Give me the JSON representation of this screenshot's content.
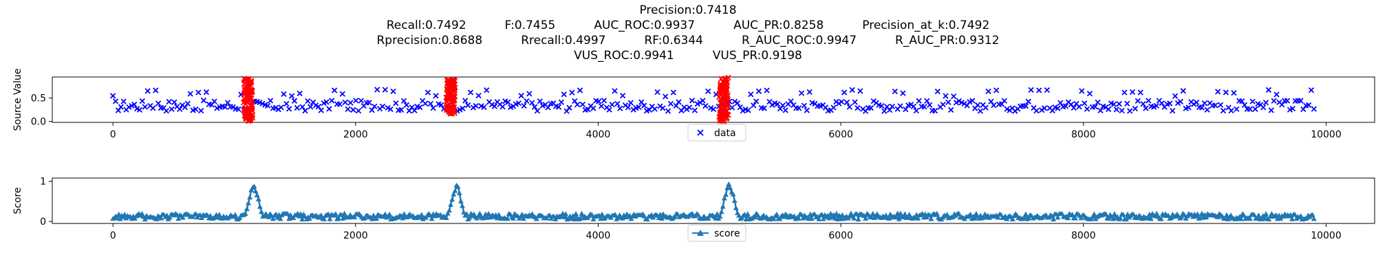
{
  "title_lines": [
    [
      "Precision:0.7418"
    ],
    [
      "Recall:0.7492",
      "F:0.7455",
      "AUC_ROC:0.9937",
      "AUC_PR:0.8258",
      "Precision_at_k:0.7492"
    ],
    [
      "Rprecision:0.8688",
      "Rrecall:0.4997",
      "RF:0.6344",
      "R_AUC_ROC:0.9947",
      "R_AUC_PR:0.9312"
    ],
    [
      "VUS_ROC:0.9941",
      "VUS_PR:0.9198"
    ]
  ],
  "colors": {
    "data": "#0000ff",
    "anomaly": "#ff0000",
    "score": "#1f77b4"
  },
  "chart_data": [
    {
      "type": "scatter",
      "ylabel": "Source Value",
      "xlim": [
        -500,
        10400
      ],
      "ylim": [
        -0.02,
        0.95
      ],
      "xticks": [
        0,
        2000,
        4000,
        6000,
        8000,
        10000
      ],
      "xtick_labels": [
        "0",
        "2000",
        "4000",
        "6000",
        "8000",
        "10000"
      ],
      "yticks": [
        0.0,
        0.5
      ],
      "ytick_labels": [
        "0.0",
        "0.5"
      ],
      "legend": {
        "placement": "lower-center",
        "entries": [
          {
            "label": "data",
            "marker": "x"
          }
        ]
      },
      "series": [
        {
          "name": "data",
          "marker": "x",
          "x_range": [
            0,
            9900
          ],
          "period": 70,
          "baseline": [
            0.22,
            0.45
          ],
          "peak": 0.68
        }
      ],
      "anomalies": [
        {
          "x_start": 1080,
          "x_end": 1150,
          "y_range": [
            0.0,
            0.95
          ]
        },
        {
          "x_start": 2750,
          "x_end": 2820,
          "y_range": [
            0.15,
            0.9
          ]
        },
        {
          "x_start": 5000,
          "x_end": 5070,
          "y_range": [
            0.0,
            0.95
          ]
        }
      ]
    },
    {
      "type": "line",
      "ylabel": "Score",
      "xlim": [
        -500,
        10400
      ],
      "ylim": [
        -0.05,
        1.08
      ],
      "xticks": [
        0,
        2000,
        4000,
        6000,
        8000,
        10000
      ],
      "xtick_labels": [
        "0",
        "2000",
        "4000",
        "6000",
        "8000",
        "10000"
      ],
      "yticks": [
        0,
        1
      ],
      "ytick_labels": [
        "0",
        "1"
      ],
      "legend": {
        "placement": "lower-center",
        "entries": [
          {
            "label": "score",
            "marker": "^"
          }
        ]
      },
      "series": [
        {
          "name": "score",
          "marker": "^",
          "x_range": [
            0,
            9900
          ],
          "baseline": [
            0.05,
            0.2
          ],
          "peaks": [
            {
              "x": 1160,
              "value": 0.95
            },
            {
              "x": 2830,
              "value": 0.92
            },
            {
              "x": 5080,
              "value": 0.98
            }
          ]
        }
      ]
    }
  ]
}
